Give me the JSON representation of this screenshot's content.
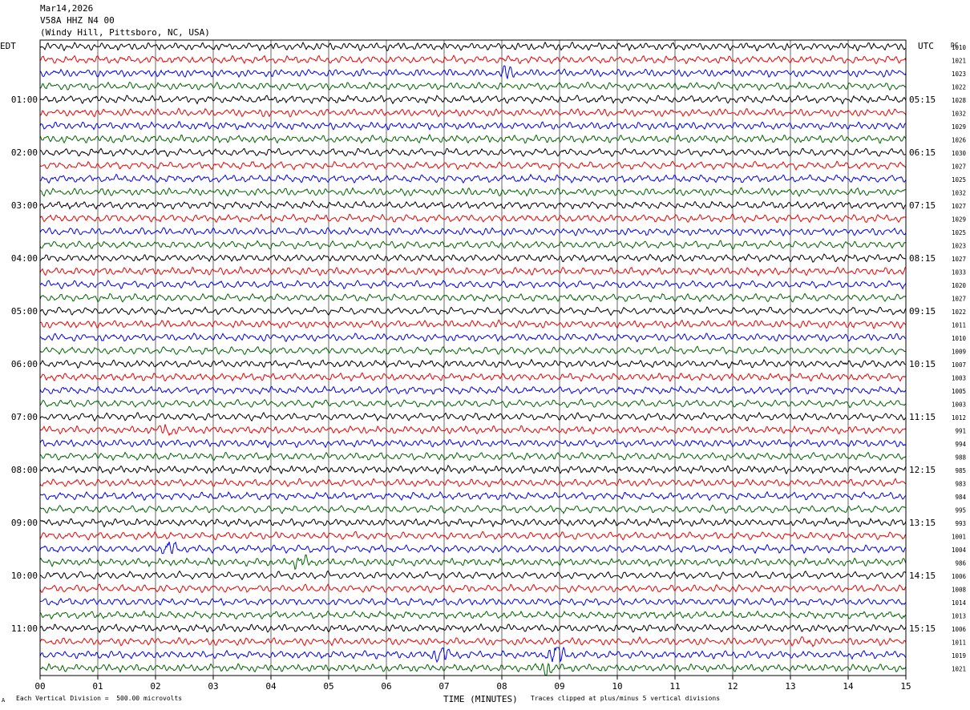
{
  "header": {
    "date": "Mar14,2026",
    "station": "V58A HHZ N4 00",
    "location": "(Windy Hill, Pittsboro, NC, USA)"
  },
  "chart_data": {
    "type": "line",
    "title": "",
    "left_axis_label": "EDT",
    "right_axis_label": "UTC",
    "dc_header": "DC",
    "xlabel": "TIME (MINUTES)",
    "x_ticks": [
      "00",
      "01",
      "02",
      "03",
      "04",
      "05",
      "06",
      "07",
      "08",
      "09",
      "10",
      "11",
      "12",
      "13",
      "14",
      "15"
    ],
    "xlim": [
      0,
      15
    ],
    "trace_count": 48,
    "minutes_per_trace": 15,
    "trace_colors": [
      "#000000",
      "#ee0000",
      "#0000ee",
      "#006400"
    ],
    "left_hour_labels": [
      "01:00",
      "02:00",
      "03:00",
      "04:00",
      "05:00",
      "06:00",
      "07:00",
      "08:00",
      "09:00",
      "10:00",
      "11:00"
    ],
    "right_hour_labels": [
      "05:15",
      "06:15",
      "07:15",
      "08:15",
      "09:15",
      "10:15",
      "11:15",
      "12:15",
      "13:15",
      "14:15",
      "15:15"
    ],
    "hour_label_first_trace": 4,
    "hour_label_every": 4,
    "dc_values": [
      "1010",
      "1021",
      "1023",
      "1022",
      "1028",
      "1032",
      "1029",
      "1026",
      "1030",
      "1027",
      "1025",
      "1032",
      "1027",
      "1029",
      "1025",
      "1023",
      "1027",
      "1033",
      "1020",
      "1027",
      "1022",
      "1011",
      "1010",
      "1009",
      "1007",
      "1003",
      "1005",
      "1003",
      "1012",
      "991",
      "994",
      "988",
      "985",
      "983",
      "984",
      "995",
      "993",
      "1001",
      "1004",
      "986",
      "1006",
      "1008",
      "1014",
      "1013",
      "1006",
      "1011",
      "1019",
      "1021"
    ],
    "bursts": [
      {
        "trace": 2,
        "minute": 8.1,
        "amplitude": 1.6
      },
      {
        "trace": 29,
        "minute": 2.2,
        "amplitude": 1.5
      },
      {
        "trace": 38,
        "minute": 2.25,
        "amplitude": 2.0
      },
      {
        "trace": 39,
        "minute": 4.55,
        "amplitude": 2.2
      },
      {
        "trace": 45,
        "minute": 13.3,
        "amplitude": 1.6
      },
      {
        "trace": 46,
        "minute": 6.95,
        "amplitude": 2.5
      },
      {
        "trace": 46,
        "minute": 8.95,
        "amplitude": 3.8
      },
      {
        "trace": 47,
        "minute": 8.75,
        "amplitude": 3.2
      }
    ],
    "footer_left": "Each Vertical Division =  500.00 microvolts",
    "footer_right": "Traces clipped at plus/minus 5 vertical divisions",
    "corner_mark": "A"
  }
}
